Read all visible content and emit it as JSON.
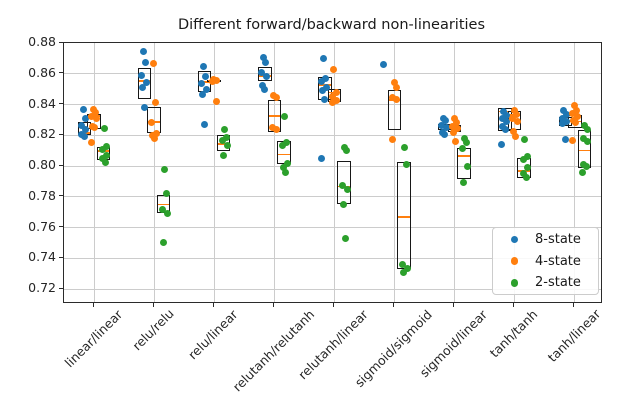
{
  "chart_data": {
    "type": "scatter",
    "box_overlay": true,
    "title": "Different forward/backward non-linearities",
    "xlabel": "",
    "ylabel": "",
    "grid": true,
    "ylim": [
      0.71,
      0.88
    ],
    "yticks": [
      0.72,
      0.74,
      0.76,
      0.78,
      0.8,
      0.82,
      0.84,
      0.86,
      0.88
    ],
    "categories": [
      "linear/linear",
      "relu/relu",
      "relu/linear",
      "relutanh/relutanh",
      "relutanh/linear",
      "sigmoid/sigmoid",
      "sigmoid/linear",
      "tanh/tanh",
      "tanh/linear"
    ],
    "median_line_color": "#ff7f0e",
    "legend": {
      "position": "lower right",
      "entries": [
        {
          "label": "8-state",
          "color": "#1f77b4"
        },
        {
          "label": "4-state",
          "color": "#ff7f0e"
        },
        {
          "label": "2-state",
          "color": "#2ca02c"
        }
      ]
    },
    "series": [
      {
        "name": "8-state",
        "color": "#1f77b4",
        "groups": [
          {
            "points": [
              0.837,
              0.831,
              0.8265,
              0.824,
              0.8205,
              0.8195
            ],
            "box": {
              "q1": 0.82,
              "median": 0.8215,
              "q3": 0.8285
            }
          },
          {
            "points": [
              0.8743,
              0.8673,
              0.859,
              0.8545,
              0.851,
              0.838
            ],
            "box": {
              "q1": 0.8433,
              "median": 0.8553,
              "q3": 0.864
            }
          },
          {
            "points": [
              0.865,
              0.858,
              0.8535,
              0.8495,
              0.8465,
              0.827
            ],
            "box": {
              "q1": 0.848,
              "median": 0.8545,
              "q3": 0.862
            }
          },
          {
            "points": [
              0.8705,
              0.8675,
              0.861,
              0.8585,
              0.8525,
              0.85
            ],
            "box": {
              "q1": 0.8552,
              "median": 0.8585,
              "q3": 0.8645
            }
          },
          {
            "points": [
              0.8697,
              0.857,
              0.855,
              0.851,
              0.849,
              0.8433,
              0.8048
            ],
            "box": {
              "q1": 0.843,
              "median": 0.8525,
              "q3": 0.858
            }
          },
          {
            "points": [
              0.866
            ],
            "box": null
          },
          {
            "points": [
              0.8308,
              0.8293,
              0.8264,
              0.8249,
              0.8221,
              0.8206
            ],
            "box": {
              "q1": 0.8232,
              "median": 0.8256,
              "q3": 0.827
            }
          },
          {
            "points": [
              0.8355,
              0.833,
              0.831,
              0.829,
              0.8257,
              0.8235,
              0.8138
            ],
            "box": {
              "q1": 0.8229,
              "median": 0.8355,
              "q3": 0.8375
            }
          },
          {
            "points": [
              0.836,
              0.8333,
              0.8311,
              0.829,
              0.8275,
              0.8174
            ],
            "box": {
              "q1": 0.8262,
              "median": 0.8294,
              "q3": 0.832
            }
          }
        ]
      },
      {
        "name": "4-state",
        "color": "#ff7f0e",
        "groups": [
          {
            "points": [
              0.8365,
              0.835,
              0.8325,
              0.831,
              0.826,
              0.825,
              0.815
            ],
            "box": {
              "q1": 0.824,
              "median": 0.8325,
              "q3": 0.8335
            }
          },
          {
            "points": [
              0.8668,
              0.8412,
              0.8286,
              0.8213,
              0.8196,
              0.8178
            ],
            "box": {
              "q1": 0.8213,
              "median": 0.8286,
              "q3": 0.8386
            }
          },
          {
            "points": [
              0.856,
              0.8555,
              0.855,
              0.842
            ],
            "box": {
              "q1": 0.8548,
              "median": 0.8555,
              "q3": 0.8562
            }
          },
          {
            "points": [
              0.8456,
              0.8445,
              0.825,
              0.8235
            ],
            "box": {
              "q1": 0.8218,
              "median": 0.8325,
              "q3": 0.843
            }
          },
          {
            "points": [
              0.8628,
              0.848,
              0.845,
              0.8423,
              0.841
            ],
            "box": {
              "q1": 0.8417,
              "median": 0.8477,
              "q3": 0.85
            }
          },
          {
            "points": [
              0.8543,
              0.851,
              0.8446,
              0.843,
              0.8174
            ],
            "box": {
              "q1": 0.8234,
              "median": 0.843,
              "q3": 0.8493
            }
          },
          {
            "points": [
              0.8308,
              0.8285,
              0.826,
              0.8245,
              0.822,
              0.8162
            ],
            "box": {
              "q1": 0.8221,
              "median": 0.8243,
              "q3": 0.8264
            }
          },
          {
            "points": [
              0.836,
              0.8335,
              0.8311,
              0.829,
              0.8224,
              0.819
            ],
            "box": {
              "q1": 0.8233,
              "median": 0.8333,
              "q3": 0.8359
            }
          },
          {
            "points": [
              0.8391,
              0.8363,
              0.834,
              0.832,
              0.8294,
              0.828,
              0.8163
            ],
            "box": {
              "q1": 0.8247,
              "median": 0.829,
              "q3": 0.8334
            }
          }
        ]
      },
      {
        "name": "2-state",
        "color": "#2ca02c",
        "groups": [
          {
            "points": [
              0.8243,
              0.813,
              0.811,
              0.807,
              0.805,
              0.802
            ],
            "box": {
              "q1": 0.804,
              "median": 0.8098,
              "q3": 0.8125
            }
          },
          {
            "points": [
              0.798,
              0.782,
              0.7715,
              0.769,
              0.75
            ],
            "box": {
              "q1": 0.7693,
              "median": 0.775,
              "q3": 0.7814
            }
          },
          {
            "points": [
              0.824,
              0.8187,
              0.8166,
              0.8134,
              0.807
            ],
            "box": {
              "q1": 0.81,
              "median": 0.8145,
              "q3": 0.82
            }
          },
          {
            "points": [
              0.832,
              0.8152,
              0.8135,
              0.8017,
              0.799,
              0.796
            ],
            "box": {
              "q1": 0.8011,
              "median": 0.8076,
              "q3": 0.8163
            }
          },
          {
            "points": [
              0.812,
              0.81,
              0.787,
              0.7845,
              0.775,
              0.753
            ],
            "box": {
              "q1": 0.7754,
              "median": 0.7866,
              "q3": 0.8035
            }
          },
          {
            "points": [
              0.812,
              0.801,
              0.736,
              0.7335,
              0.731
            ],
            "box": {
              "q1": 0.7333,
              "median": 0.7669,
              "q3": 0.8024
            }
          },
          {
            "points": [
              0.8177,
              0.8152,
              0.8115,
              0.8,
              0.789
            ],
            "box": {
              "q1": 0.7913,
              "median": 0.8065,
              "q3": 0.8119
            }
          },
          {
            "points": [
              0.8173,
              0.8065,
              0.804,
              0.799,
              0.7952,
              0.7925
            ],
            "box": {
              "q1": 0.7924,
              "median": 0.7967,
              "q3": 0.8054
            }
          },
          {
            "points": [
              0.8261,
              0.824,
              0.8176,
              0.816,
              0.8012,
              0.8,
              0.796
            ],
            "box": {
              "q1": 0.799,
              "median": 0.81,
              "q3": 0.8233
            }
          }
        ]
      }
    ]
  }
}
